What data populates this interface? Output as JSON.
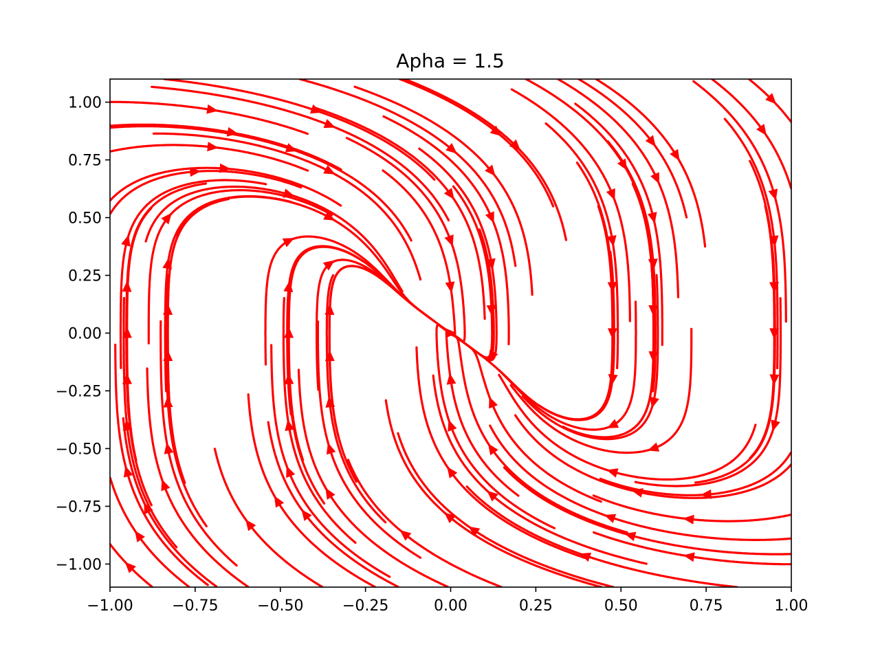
{
  "chart_data": {
    "type": "streamplot",
    "title": "Apha = 1.5",
    "xlabel": "",
    "ylabel": "",
    "xlim": [
      -1.0,
      1.0
    ],
    "ylim": [
      -1.1,
      1.1
    ],
    "grid": false,
    "line_color": "#ff0000",
    "x_ticks": [
      "-1.00",
      "-0.75",
      "-0.50",
      "-0.25",
      "0.00",
      "0.25",
      "0.50",
      "0.75",
      "1.00"
    ],
    "y_ticks": [
      "-1.00",
      "-0.75",
      "-0.50",
      "-0.25",
      "0.00",
      "0.25",
      "0.50",
      "0.75",
      "1.00"
    ],
    "x_tick_values": [
      -1.0,
      -0.75,
      -0.5,
      -0.25,
      0.0,
      0.25,
      0.5,
      0.75,
      1.0
    ],
    "y_tick_values": [
      -1.0,
      -0.75,
      -0.5,
      -0.25,
      0.0,
      0.25,
      0.5,
      0.75,
      1.0
    ],
    "field": {
      "alpha": 1.5
    }
  }
}
